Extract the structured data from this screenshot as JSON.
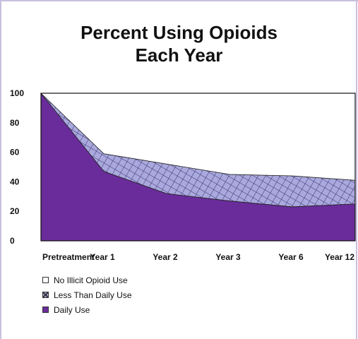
{
  "chart_data": {
    "type": "area",
    "title": "Percent Using Opioids Each Year",
    "title_lines": [
      "Percent Using Opioids",
      "Each Year"
    ],
    "categories": [
      "Pretreatment",
      "Year 1",
      "Year 2",
      "Year 3",
      "Year 6",
      "Year 12"
    ],
    "yticks": [
      "100",
      "80",
      "60",
      "40",
      "20",
      "0"
    ],
    "ylim": [
      0,
      100
    ],
    "stacked": true,
    "series": [
      {
        "name": "Daily Use",
        "values": [
          100,
          47,
          32,
          27,
          23,
          25
        ],
        "color": "#6a2c9a"
      },
      {
        "name": "Less Than Daily Use",
        "values": [
          0,
          12,
          20,
          18,
          21,
          16
        ],
        "color": "#a9a9dd"
      },
      {
        "name": "No Illicit Opioid Use",
        "values": [
          0,
          41,
          48,
          55,
          56,
          59
        ],
        "color": "#ffffff"
      }
    ],
    "legend": [
      "No Illicit Opioid Use",
      "Less Than Daily Use",
      "Daily Use"
    ],
    "legend_position": "bottom-left",
    "grid": false
  }
}
